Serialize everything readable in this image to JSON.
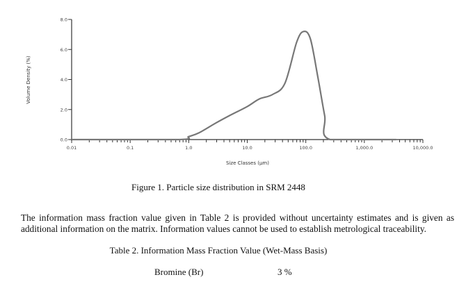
{
  "chart_data": {
    "type": "line",
    "title": "",
    "xlabel": "Size Classes (µm)",
    "ylabel": "Volume Density (%)",
    "x_scale": "log",
    "xlim": [
      0.01,
      10000
    ],
    "ylim": [
      0,
      8
    ],
    "x_ticks": [
      0.01,
      0.1,
      1,
      10,
      100,
      1000,
      10000
    ],
    "x_tick_labels": [
      "0.01",
      "0.1",
      "1.0",
      "10.0",
      "100.0",
      "1,000.0",
      "10,000.0"
    ],
    "y_ticks": [
      0,
      2,
      4,
      6,
      8
    ],
    "y_tick_labels": [
      "0.0",
      "2.0",
      "4.0",
      "6.0",
      "8.0"
    ],
    "grid": false,
    "line_color": "#777777",
    "series": [
      {
        "x": [
          0.01,
          0.65,
          1.0,
          1.5,
          2.9,
          5.0,
          10,
          16,
          27,
          44,
          70,
          92,
          120,
          160,
          210,
          260,
          3500
        ],
        "y": [
          0,
          0,
          0.2,
          0.45,
          1.1,
          1.6,
          2.2,
          2.7,
          3.0,
          3.75,
          6.5,
          7.2,
          6.7,
          4.2,
          1.6,
          0,
          0
        ]
      }
    ]
  },
  "figure_caption": "Figure 1.  Particle size distribution in SRM 2448",
  "paragraph": "The information mass fraction value given in Table 2 is provided without uncertainty estimates and is given as additional information on the matrix.  Information values cannot be used to establish metrological traceability.",
  "table": {
    "title": "Table 2. Information Mass Fraction Value (Wet-Mass Basis)",
    "rows": [
      {
        "analyte": "Bromine (Br)",
        "value": "3 %"
      }
    ]
  }
}
